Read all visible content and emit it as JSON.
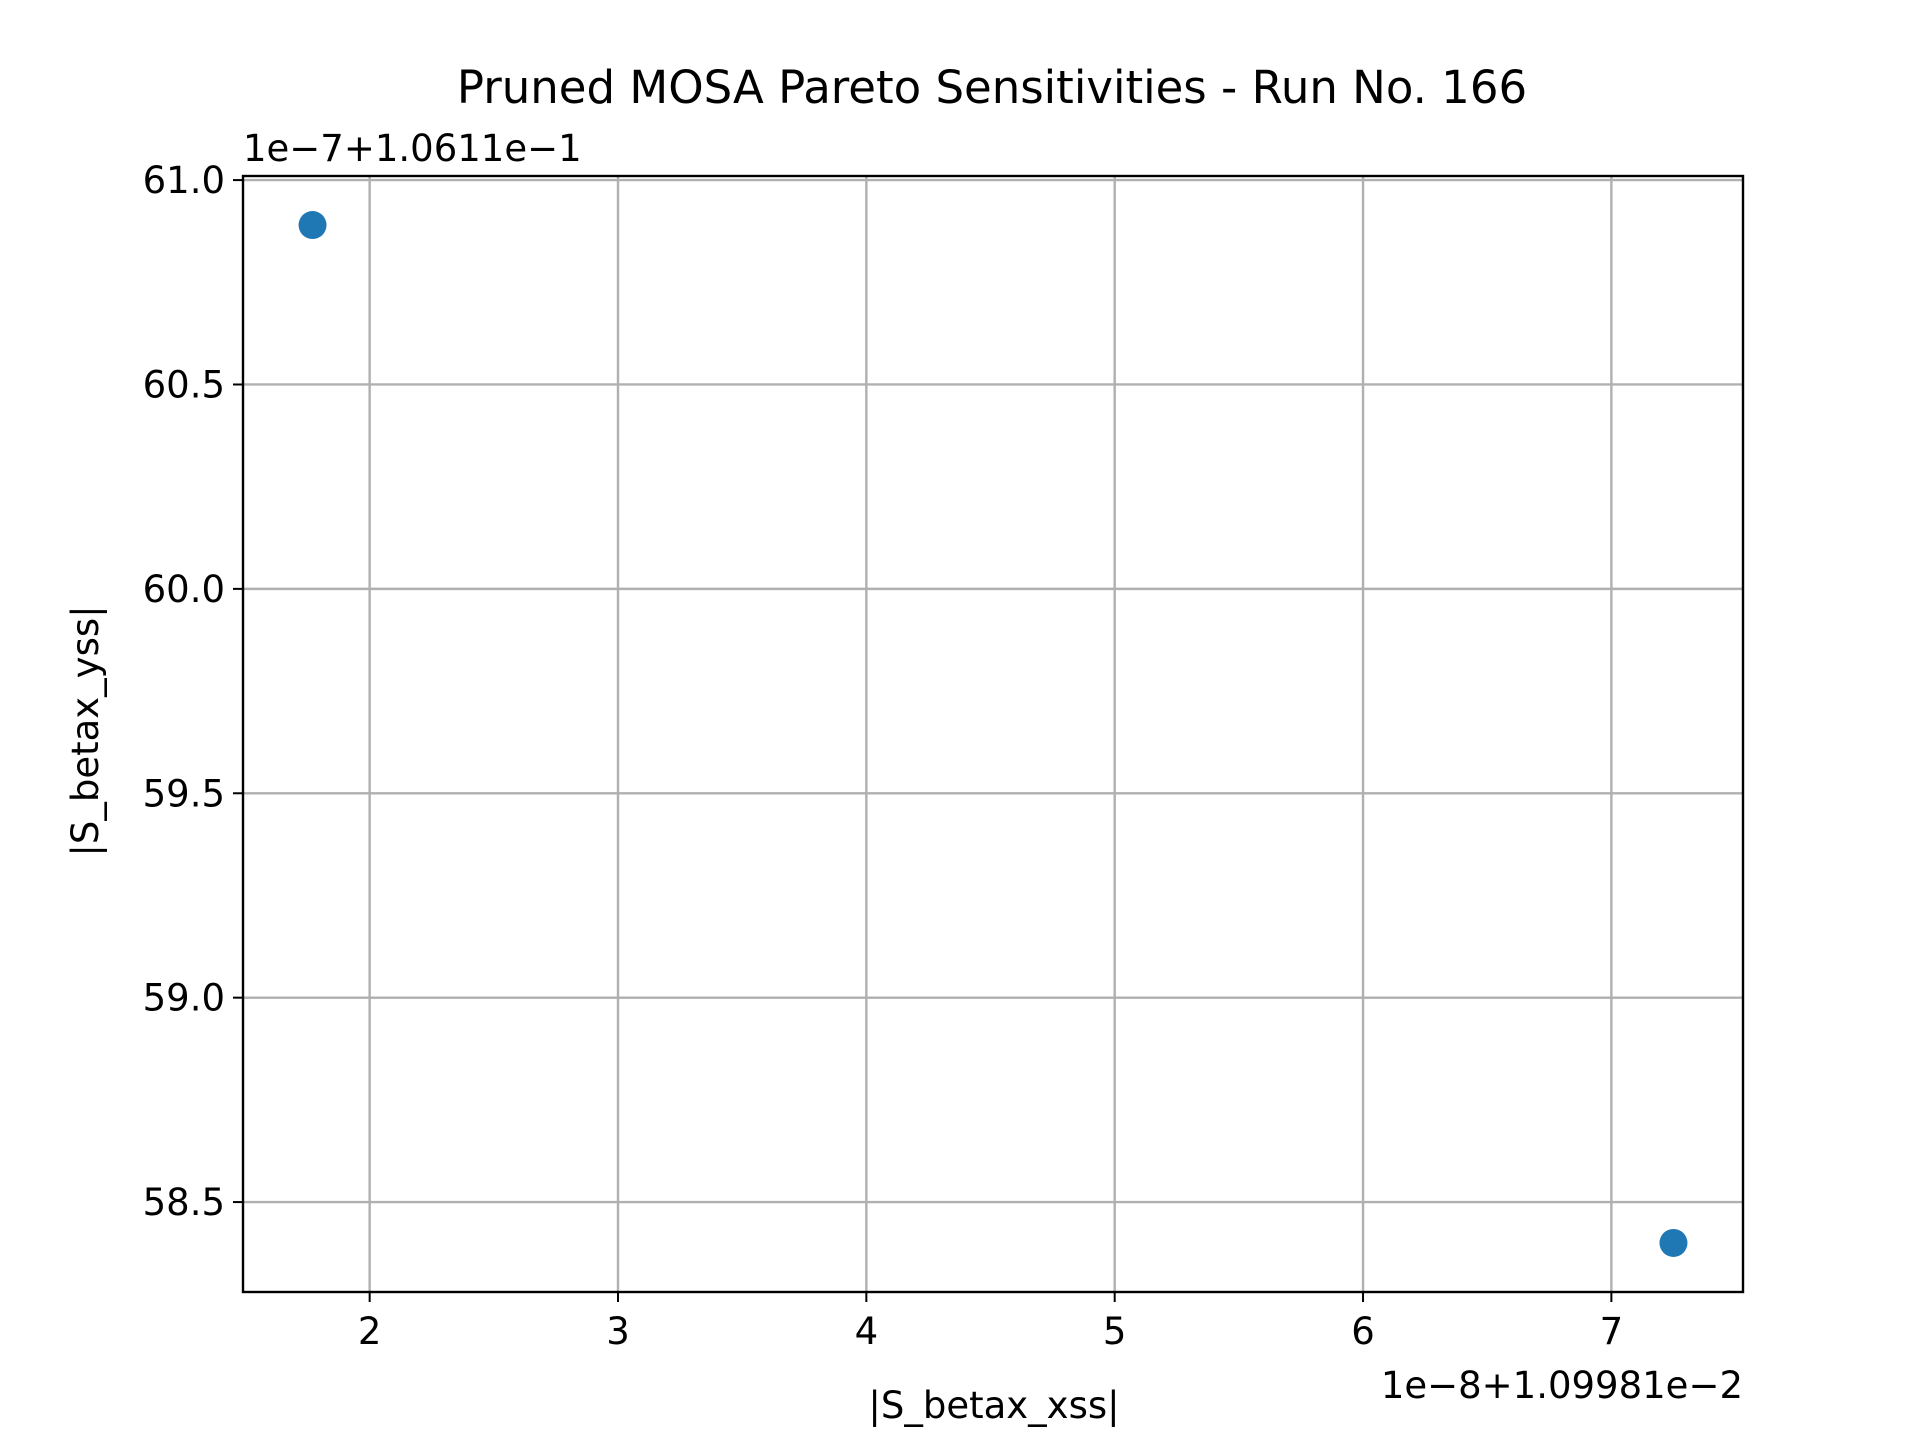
{
  "chart_data": {
    "type": "scatter",
    "title": "Pruned MOSA Pareto Sensitivities - Run No. 166",
    "xlabel": "|S_betax_xss|",
    "ylabel": "|S_betax_yss|",
    "x_offset_label": "1e−8+1.09981e−2",
    "y_offset_label": "1e−7+1.0611e−1",
    "xlim": [
      1.49,
      7.53
    ],
    "ylim": [
      58.28,
      61.01
    ],
    "x_ticks": [
      2,
      3,
      4,
      5,
      6,
      7
    ],
    "x_tick_labels": [
      "2",
      "3",
      "4",
      "5",
      "6",
      "7"
    ],
    "y_ticks": [
      58.5,
      59.0,
      59.5,
      60.0,
      60.5,
      61.0
    ],
    "y_tick_labels": [
      "58.5",
      "59.0",
      "59.5",
      "60.0",
      "60.5",
      "61.0"
    ],
    "grid": true,
    "point_color": "#1f77b4",
    "points": [
      {
        "x": 1.77,
        "y": 60.89
      },
      {
        "x": 7.25,
        "y": 58.4
      }
    ]
  }
}
